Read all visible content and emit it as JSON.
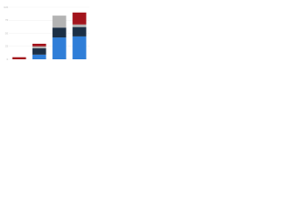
{
  "chart_data": {
    "type": "stacked-bar",
    "categories": [
      null,
      null,
      null,
      null
    ],
    "series": [
      {
        "color": "#2f7ed8",
        "values": [
          0,
          9,
          42,
          44
        ]
      },
      {
        "color": "#1b2f45",
        "values": [
          0,
          12,
          19,
          18
        ]
      },
      {
        "color": "#b3b3b3",
        "values": [
          0,
          4,
          23,
          5
        ]
      },
      {
        "color": "#a3141c",
        "values": [
          4,
          5,
          0,
          23
        ]
      }
    ],
    "ylim": [
      0,
      100
    ],
    "yticks": [
      0,
      25,
      50,
      75,
      100
    ],
    "grid": true
  }
}
